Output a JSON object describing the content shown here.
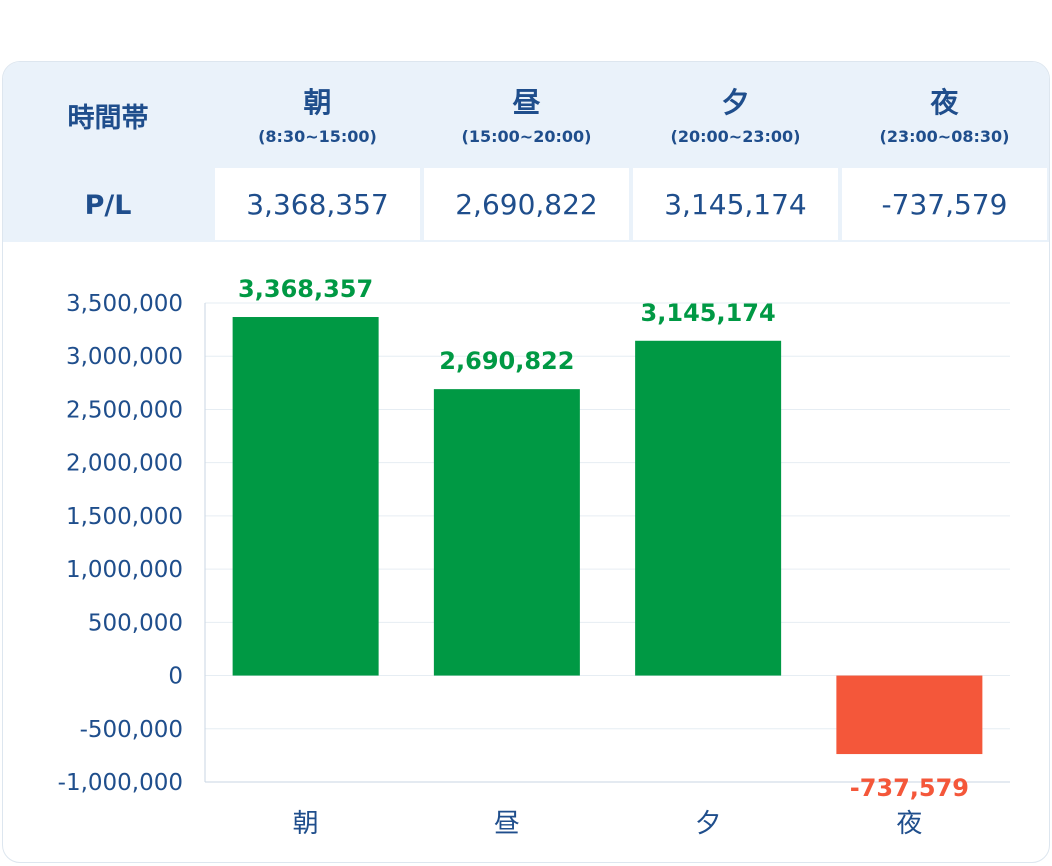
{
  "table": {
    "label_header": "時間帯",
    "label_pl": "P/L",
    "periods": [
      {
        "name": "朝",
        "range": "(8:30~15:00)",
        "pl": "3,368,357"
      },
      {
        "name": "昼",
        "range": "(15:00~20:00)",
        "pl": "2,690,822"
      },
      {
        "name": "夕",
        "range": "(20:00~23:00)",
        "pl": "3,145,174"
      },
      {
        "name": "夜",
        "range": "(23:00~08:30)",
        "pl": "-737,579"
      }
    ]
  },
  "chart_data": {
    "type": "bar",
    "categories": [
      "朝",
      "昼",
      "夕",
      "夜"
    ],
    "values": [
      3368357,
      2690822,
      3145174,
      -737579
    ],
    "value_labels": [
      "3,368,357",
      "2,690,822",
      "3,145,174",
      "-737,579"
    ],
    "ylim": [
      -1000000,
      3500000
    ],
    "yticks": [
      3500000,
      3000000,
      2500000,
      2000000,
      1500000,
      1000000,
      500000,
      0,
      -500000,
      -1000000
    ],
    "ytick_labels": [
      "3,500,000",
      "3,000,000",
      "2,500,000",
      "2,000,000",
      "1,500,000",
      "1,000,000",
      "500,000",
      "0",
      "-500,000",
      "-1,000,000"
    ],
    "grid": true,
    "colors": {
      "positive": "#009944",
      "negative": "#f4573a",
      "axis_text": "#1f4e8c",
      "grid": "#e6edf3"
    }
  }
}
